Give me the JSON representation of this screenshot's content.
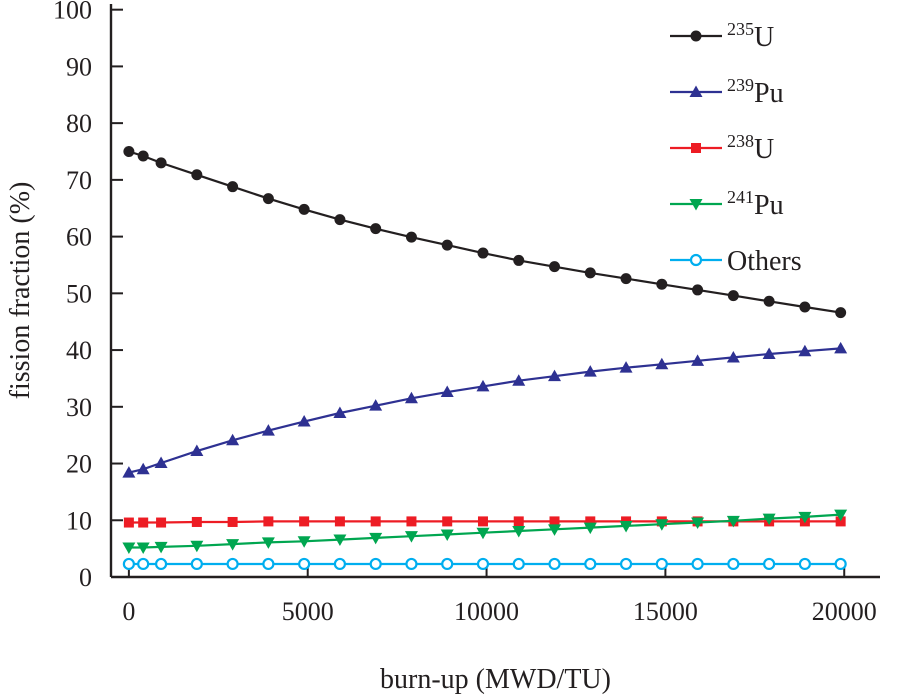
{
  "chart_data": {
    "type": "line",
    "title": "",
    "xlabel": "burn-up (MWD/TU)",
    "ylabel": "fission fraction (%)",
    "xlim": [
      -500,
      21000
    ],
    "ylim": [
      0,
      101
    ],
    "x_ticks": [
      0,
      5000,
      10000,
      15000,
      20000
    ],
    "y_ticks": [
      0,
      10,
      20,
      30,
      40,
      50,
      60,
      70,
      80,
      90,
      100
    ],
    "x_tick_labels": [
      "0",
      "5000",
      "10000",
      "15000",
      "20000"
    ],
    "y_tick_labels": [
      "0",
      "10",
      "20",
      "30",
      "40",
      "50",
      "60",
      "70",
      "80",
      "90",
      "100"
    ],
    "grid": false,
    "legend_position": "top-right",
    "x": [
      0,
      400,
      900,
      1900,
      2900,
      3900,
      4900,
      5900,
      6900,
      7900,
      8900,
      9900,
      10900,
      11900,
      12900,
      13900,
      14900,
      15900,
      16900,
      17900,
      18900,
      19900
    ],
    "series": [
      {
        "isotope": "235",
        "element": "U",
        "color": "#231f20",
        "marker": "circle-filled",
        "values": [
          75.0,
          74.2,
          73.0,
          70.9,
          68.8,
          66.7,
          64.8,
          63.0,
          61.4,
          59.9,
          58.5,
          57.1,
          55.8,
          54.7,
          53.6,
          52.6,
          51.6,
          50.6,
          49.6,
          48.6,
          47.6,
          46.6
        ]
      },
      {
        "isotope": "239",
        "element": "Pu",
        "color": "#2e3192",
        "marker": "triangle-up",
        "values": [
          18.4,
          19.0,
          20.1,
          22.2,
          24.1,
          25.8,
          27.4,
          28.9,
          30.2,
          31.5,
          32.6,
          33.6,
          34.6,
          35.4,
          36.2,
          36.9,
          37.5,
          38.1,
          38.7,
          39.3,
          39.8,
          40.3
        ]
      },
      {
        "isotope": "238",
        "element": "U",
        "color": "#ed1c24",
        "marker": "square-filled",
        "values": [
          9.6,
          9.6,
          9.6,
          9.7,
          9.7,
          9.8,
          9.8,
          9.8,
          9.8,
          9.8,
          9.8,
          9.8,
          9.8,
          9.8,
          9.8,
          9.8,
          9.8,
          9.8,
          9.8,
          9.8,
          9.8,
          9.8
        ]
      },
      {
        "isotope": "241",
        "element": "Pu",
        "color": "#00a650",
        "marker": "triangle-down",
        "values": [
          5.2,
          5.2,
          5.3,
          5.5,
          5.8,
          6.1,
          6.3,
          6.6,
          6.9,
          7.2,
          7.5,
          7.8,
          8.1,
          8.4,
          8.7,
          9.0,
          9.3,
          9.6,
          9.9,
          10.3,
          10.6,
          11.0
        ]
      },
      {
        "name": "Others",
        "color": "#00aeef",
        "marker": "circle-open",
        "values": [
          2.3,
          2.3,
          2.3,
          2.3,
          2.3,
          2.3,
          2.3,
          2.3,
          2.3,
          2.3,
          2.3,
          2.3,
          2.3,
          2.3,
          2.3,
          2.3,
          2.3,
          2.3,
          2.3,
          2.3,
          2.3,
          2.3
        ]
      }
    ]
  }
}
